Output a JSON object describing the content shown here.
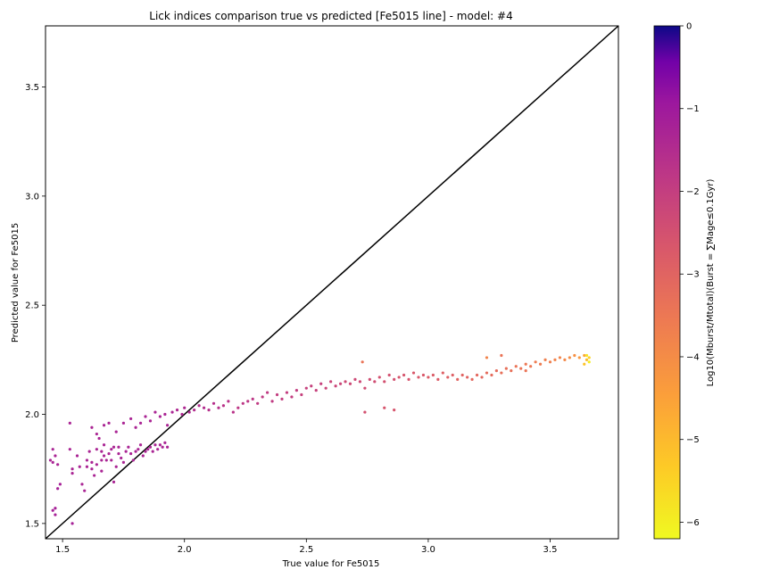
{
  "chart_data": {
    "type": "scatter",
    "title": "Lick indices comparison true vs predicted [Fe5015 line] - model: #4",
    "xlabel": "True value for Fe5015",
    "ylabel": "Predicted value for Fe5015",
    "xlim": [
      1.43,
      3.78
    ],
    "ylim": [
      1.43,
      3.78
    ],
    "xticks": [
      "1.5",
      "2.0",
      "2.5",
      "3.0",
      "3.5"
    ],
    "yticks": [
      "1.5",
      "2.0",
      "2.5",
      "3.0",
      "3.5"
    ],
    "identity_line": true,
    "grid": false,
    "colorbar": {
      "label": "Log10(Mburst/Mtotal)(Burst = ∑Mage≤0.1Gyr)",
      "range": [
        -6.2,
        0
      ],
      "ticks": [
        "0",
        "−1",
        "−2",
        "−3",
        "−4",
        "−5",
        "−6"
      ],
      "colormap": "plasma"
    },
    "series": [
      {
        "points": [
          [
            1.45,
            1.79,
            -1.3
          ],
          [
            1.46,
            1.84,
            -1.3
          ],
          [
            1.46,
            1.78,
            -1.3
          ],
          [
            1.47,
            1.81,
            -1.3
          ],
          [
            1.48,
            1.77,
            -1.3
          ],
          [
            1.48,
            1.66,
            -1.2
          ],
          [
            1.49,
            1.68,
            -1.2
          ],
          [
            1.47,
            1.57,
            -1.2
          ],
          [
            1.47,
            1.54,
            -1.2
          ],
          [
            1.46,
            1.56,
            -1.2
          ],
          [
            1.54,
            1.5,
            -1.2
          ],
          [
            1.53,
            1.96,
            -1.3
          ],
          [
            1.53,
            1.84,
            -1.3
          ],
          [
            1.54,
            1.75,
            -1.3
          ],
          [
            1.54,
            1.73,
            -1.3
          ],
          [
            1.56,
            1.81,
            -1.3
          ],
          [
            1.57,
            1.76,
            -1.3
          ],
          [
            1.58,
            1.68,
            -1.3
          ],
          [
            1.59,
            1.65,
            -1.3
          ],
          [
            1.6,
            1.76,
            -1.3
          ],
          [
            1.6,
            1.79,
            -1.3
          ],
          [
            1.61,
            1.83,
            -1.3
          ],
          [
            1.62,
            1.78,
            -1.3
          ],
          [
            1.62,
            1.75,
            -1.3
          ],
          [
            1.63,
            1.72,
            -1.3
          ],
          [
            1.64,
            1.84,
            -1.3
          ],
          [
            1.64,
            1.77,
            -1.3
          ],
          [
            1.65,
            1.89,
            -1.3
          ],
          [
            1.66,
            1.79,
            -1.3
          ],
          [
            1.66,
            1.74,
            -1.3
          ],
          [
            1.66,
            1.83,
            -1.3
          ],
          [
            1.67,
            1.81,
            -1.3
          ],
          [
            1.67,
            1.86,
            -1.3
          ],
          [
            1.68,
            1.79,
            -1.3
          ],
          [
            1.69,
            1.82,
            -1.3
          ],
          [
            1.7,
            1.84,
            -1.3
          ],
          [
            1.7,
            1.79,
            -1.3
          ],
          [
            1.71,
            1.85,
            -1.3
          ],
          [
            1.71,
            1.69,
            -1.3
          ],
          [
            1.72,
            1.76,
            -1.3
          ],
          [
            1.73,
            1.82,
            -1.3
          ],
          [
            1.73,
            1.85,
            -1.3
          ],
          [
            1.74,
            1.8,
            -1.3
          ],
          [
            1.75,
            1.78,
            -1.3
          ],
          [
            1.76,
            1.83,
            -1.3
          ],
          [
            1.77,
            1.85,
            -1.3
          ],
          [
            1.78,
            1.82,
            -1.3
          ],
          [
            1.79,
            1.79,
            -1.3
          ],
          [
            1.8,
            1.83,
            -1.3
          ],
          [
            1.81,
            1.84,
            -1.3
          ],
          [
            1.82,
            1.86,
            -1.3
          ],
          [
            1.83,
            1.81,
            -1.3
          ],
          [
            1.84,
            1.83,
            -1.3
          ],
          [
            1.85,
            1.84,
            -1.3
          ],
          [
            1.86,
            1.85,
            -1.3
          ],
          [
            1.87,
            1.83,
            -1.3
          ],
          [
            1.88,
            1.86,
            -1.3
          ],
          [
            1.89,
            1.84,
            -1.3
          ],
          [
            1.9,
            1.86,
            -1.3
          ],
          [
            1.91,
            1.85,
            -1.3
          ],
          [
            1.92,
            1.87,
            -1.3
          ],
          [
            1.93,
            1.85,
            -1.3
          ],
          [
            1.62,
            1.94,
            -1.3
          ],
          [
            1.64,
            1.91,
            -1.3
          ],
          [
            1.67,
            1.95,
            -1.3
          ],
          [
            1.69,
            1.96,
            -1.3
          ],
          [
            1.72,
            1.92,
            -1.3
          ],
          [
            1.75,
            1.96,
            -1.3
          ],
          [
            1.78,
            1.98,
            -1.3
          ],
          [
            1.8,
            1.94,
            -1.3
          ],
          [
            1.82,
            1.96,
            -1.3
          ],
          [
            1.84,
            1.99,
            -1.3
          ],
          [
            1.86,
            1.97,
            -1.3
          ],
          [
            1.88,
            2.01,
            -1.3
          ],
          [
            1.9,
            1.99,
            -1.3
          ],
          [
            1.92,
            2.0,
            -1.3
          ],
          [
            1.93,
            1.95,
            -1.3
          ],
          [
            1.95,
            2.01,
            -1.3
          ],
          [
            1.97,
            2.02,
            -1.4
          ],
          [
            1.99,
            2.0,
            -1.4
          ],
          [
            2.0,
            2.03,
            -1.4
          ],
          [
            2.02,
            2.01,
            -1.4
          ],
          [
            2.04,
            2.02,
            -1.5
          ],
          [
            2.06,
            2.04,
            -1.5
          ],
          [
            2.08,
            2.03,
            -1.5
          ],
          [
            2.1,
            2.02,
            -1.6
          ],
          [
            2.12,
            2.05,
            -1.6
          ],
          [
            2.14,
            2.03,
            -1.6
          ],
          [
            2.16,
            2.04,
            -1.7
          ],
          [
            2.18,
            2.06,
            -1.7
          ],
          [
            2.2,
            2.01,
            -1.7
          ],
          [
            2.22,
            2.03,
            -1.8
          ],
          [
            2.24,
            2.05,
            -1.8
          ],
          [
            2.26,
            2.06,
            -1.8
          ],
          [
            2.28,
            2.07,
            -1.8
          ],
          [
            2.3,
            2.05,
            -1.9
          ],
          [
            2.32,
            2.08,
            -1.9
          ],
          [
            2.34,
            2.1,
            -1.9
          ],
          [
            2.36,
            2.06,
            -1.9
          ],
          [
            2.38,
            2.09,
            -2.0
          ],
          [
            2.4,
            2.07,
            -2.0
          ],
          [
            2.42,
            2.1,
            -2.0
          ],
          [
            2.44,
            2.08,
            -2.0
          ],
          [
            2.46,
            2.11,
            -2.0
          ],
          [
            2.48,
            2.09,
            -2.1
          ],
          [
            2.5,
            2.12,
            -2.1
          ],
          [
            2.52,
            2.13,
            -2.1
          ],
          [
            2.54,
            2.11,
            -2.1
          ],
          [
            2.56,
            2.14,
            -2.1
          ],
          [
            2.58,
            2.12,
            -2.2
          ],
          [
            2.6,
            2.15,
            -2.2
          ],
          [
            2.62,
            2.13,
            -2.2
          ],
          [
            2.64,
            2.14,
            -2.2
          ],
          [
            2.66,
            2.15,
            -2.3
          ],
          [
            2.68,
            2.14,
            -2.3
          ],
          [
            2.7,
            2.16,
            -2.3
          ],
          [
            2.72,
            2.15,
            -2.3
          ],
          [
            2.74,
            2.12,
            -2.4
          ],
          [
            2.76,
            2.16,
            -2.4
          ],
          [
            2.78,
            2.15,
            -2.4
          ],
          [
            2.8,
            2.17,
            -2.5
          ],
          [
            2.82,
            2.15,
            -2.5
          ],
          [
            2.84,
            2.18,
            -2.5
          ],
          [
            2.86,
            2.16,
            -2.5
          ],
          [
            2.88,
            2.17,
            -2.6
          ],
          [
            2.9,
            2.18,
            -2.6
          ],
          [
            2.92,
            2.16,
            -2.6
          ],
          [
            2.94,
            2.19,
            -2.7
          ],
          [
            2.96,
            2.17,
            -2.7
          ],
          [
            2.98,
            2.18,
            -2.7
          ],
          [
            3.0,
            2.17,
            -2.8
          ],
          [
            3.02,
            2.18,
            -2.8
          ],
          [
            3.04,
            2.16,
            -2.8
          ],
          [
            3.06,
            2.19,
            -2.9
          ],
          [
            3.08,
            2.17,
            -2.9
          ],
          [
            3.1,
            2.18,
            -2.9
          ],
          [
            3.12,
            2.16,
            -3.0
          ],
          [
            3.14,
            2.18,
            -3.0
          ],
          [
            3.16,
            2.17,
            -3.0
          ],
          [
            3.18,
            2.16,
            -3.1
          ],
          [
            3.2,
            2.18,
            -3.1
          ],
          [
            3.22,
            2.17,
            -3.1
          ],
          [
            3.24,
            2.19,
            -3.2
          ],
          [
            3.26,
            2.18,
            -3.2
          ],
          [
            3.28,
            2.2,
            -3.2
          ],
          [
            3.3,
            2.19,
            -3.3
          ],
          [
            3.32,
            2.21,
            -3.3
          ],
          [
            3.34,
            2.2,
            -3.3
          ],
          [
            3.36,
            2.22,
            -3.4
          ],
          [
            3.38,
            2.21,
            -3.4
          ],
          [
            3.4,
            2.23,
            -3.5
          ],
          [
            3.42,
            2.22,
            -3.5
          ],
          [
            3.44,
            2.24,
            -3.6
          ],
          [
            3.46,
            2.23,
            -3.6
          ],
          [
            3.48,
            2.25,
            -3.7
          ],
          [
            3.5,
            2.24,
            -3.7
          ],
          [
            3.52,
            2.25,
            -3.8
          ],
          [
            3.54,
            2.26,
            -3.8
          ],
          [
            3.56,
            2.25,
            -3.9
          ],
          [
            3.58,
            2.26,
            -4.0
          ],
          [
            3.6,
            2.27,
            -4.1
          ],
          [
            3.62,
            2.26,
            -4.3
          ],
          [
            3.64,
            2.27,
            -4.6
          ],
          [
            3.65,
            2.25,
            -5.0
          ],
          [
            3.66,
            2.26,
            -5.5
          ],
          [
            3.66,
            2.24,
            -6.0
          ],
          [
            3.65,
            2.27,
            -5.8
          ],
          [
            3.64,
            2.23,
            -5.2
          ],
          [
            2.73,
            2.24,
            -3.4
          ],
          [
            2.74,
            2.01,
            -2.5
          ],
          [
            2.82,
            2.03,
            -2.6
          ],
          [
            2.86,
            2.02,
            -2.6
          ],
          [
            3.24,
            2.26,
            -3.8
          ],
          [
            3.3,
            2.27,
            -3.4
          ],
          [
            3.4,
            2.2,
            -3.4
          ]
        ]
      }
    ]
  }
}
